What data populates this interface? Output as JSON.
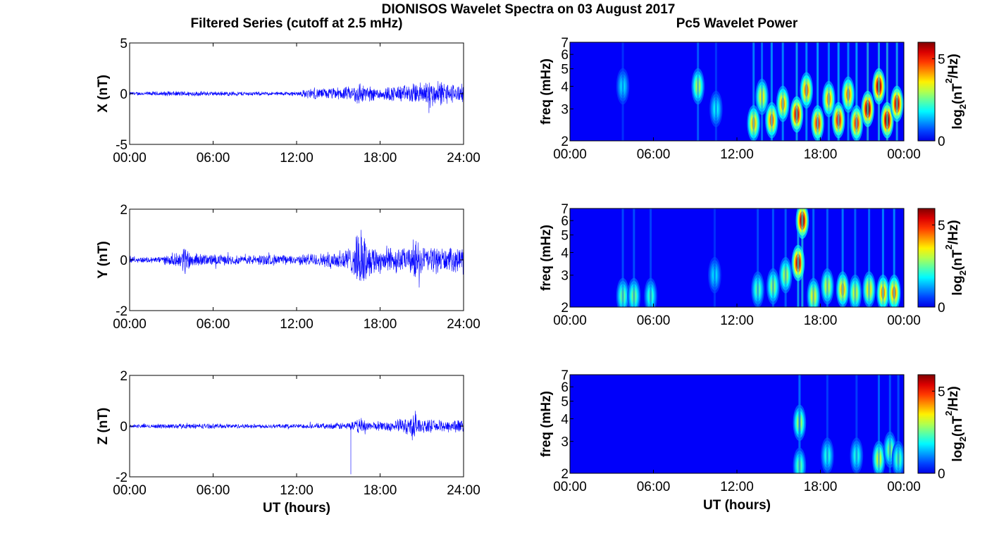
{
  "figure": {
    "title": "DIONISOS Wavelet Spectra on 03 August 2017",
    "left_title": "Filtered Series (cutoff at 2.5 mHz)",
    "right_title": "Pc5 Wavelet Power",
    "xlabel": "UT (hours)"
  },
  "colors": {
    "trace": "#0000ff",
    "axis": "#000000",
    "colormap": "jet",
    "colormap_stops": [
      "#00008f",
      "#0000ff",
      "#00ffff",
      "#ffff00",
      "#ff0000",
      "#800000"
    ]
  },
  "chart_data": [
    {
      "type": "line",
      "panel": "X",
      "ylabel": "X (nT)",
      "x_range_hours": [
        0,
        24
      ],
      "xticks": [
        "00:00",
        "06:00",
        "12:00",
        "18:00",
        "24:00"
      ],
      "ylim": [
        -5,
        5
      ],
      "yticks": [
        "5",
        "0",
        "-5"
      ],
      "envelope_hours": [
        0,
        2,
        4,
        6,
        8,
        10,
        12,
        13,
        14,
        15,
        16,
        16.5,
        17,
        17.5,
        18,
        19,
        20,
        21,
        21.5,
        22,
        22.5,
        23,
        24
      ],
      "envelope_nT": [
        0.2,
        0.25,
        0.3,
        0.25,
        0.25,
        0.2,
        0.25,
        0.6,
        0.6,
        0.7,
        0.8,
        1.5,
        0.9,
        0.8,
        0.7,
        0.9,
        1.0,
        1.3,
        1.8,
        1.2,
        1.4,
        1.1,
        1.0
      ]
    },
    {
      "type": "line",
      "panel": "Y",
      "ylabel": "Y (nT)",
      "x_range_hours": [
        0,
        24
      ],
      "xticks": [
        "00:00",
        "06:00",
        "12:00",
        "18:00",
        "24:00"
      ],
      "ylim": [
        -2,
        2
      ],
      "yticks": [
        "2",
        "0",
        "-2"
      ],
      "envelope_hours": [
        0,
        2,
        3.5,
        4,
        4.5,
        6,
        8,
        10,
        12,
        13,
        14,
        15,
        16,
        16.5,
        16.8,
        17.2,
        18,
        19,
        20,
        20.5,
        21,
        22,
        23,
        24
      ],
      "envelope_nT": [
        0.12,
        0.15,
        0.3,
        0.7,
        0.3,
        0.25,
        0.2,
        0.25,
        0.2,
        0.3,
        0.3,
        0.5,
        0.6,
        1.3,
        1.4,
        0.7,
        0.6,
        0.6,
        0.5,
        1.0,
        0.6,
        0.6,
        0.5,
        0.6
      ]
    },
    {
      "type": "line",
      "panel": "Z",
      "ylabel": "Z (nT)",
      "x_range_hours": [
        0,
        24
      ],
      "xticks": [
        "00:00",
        "06:00",
        "12:00",
        "18:00",
        "24:00"
      ],
      "ylim": [
        -2,
        2
      ],
      "yticks": [
        "2",
        "0",
        "-2"
      ],
      "envelope_hours": [
        0,
        4,
        8,
        12,
        14,
        15,
        16,
        16.8,
        17.2,
        18,
        19,
        20,
        20.5,
        21,
        22,
        23,
        24
      ],
      "envelope_nT": [
        0.08,
        0.12,
        0.1,
        0.1,
        0.12,
        0.15,
        0.2,
        0.4,
        0.2,
        0.2,
        0.25,
        0.4,
        0.7,
        0.3,
        0.25,
        0.3,
        0.3
      ],
      "spikes": [
        {
          "hour": 15.9,
          "value": -1.9
        }
      ]
    },
    {
      "type": "heatmap",
      "panel": "X",
      "ylabel": "freq (mHz)",
      "x_range_hours": [
        0,
        24
      ],
      "xticks": [
        "00:00",
        "06:00",
        "12:00",
        "18:00",
        "00:00"
      ],
      "ylim_mHz": [
        2,
        7
      ],
      "yscale": "log",
      "yticks": [
        "7",
        "6",
        "5",
        "4",
        "3",
        "2"
      ],
      "colorbar": {
        "label": "log2(nT²/Hz)",
        "ticks": [
          "5",
          "0"
        ],
        "range": [
          0,
          6
        ]
      },
      "blobs": [
        {
          "t": 3.8,
          "f": 4.0,
          "p": 1.6
        },
        {
          "t": 9.2,
          "f": 4.0,
          "p": 3.0
        },
        {
          "t": 10.5,
          "f": 3.0,
          "p": 1.8
        },
        {
          "t": 13.2,
          "f": 2.5,
          "p": 4.0
        },
        {
          "t": 13.8,
          "f": 3.5,
          "p": 3.5
        },
        {
          "t": 14.5,
          "f": 2.6,
          "p": 4.5
        },
        {
          "t": 15.3,
          "f": 3.2,
          "p": 4.2
        },
        {
          "t": 16.3,
          "f": 2.8,
          "p": 5.5
        },
        {
          "t": 17.0,
          "f": 3.8,
          "p": 4.5
        },
        {
          "t": 17.8,
          "f": 2.5,
          "p": 5.0
        },
        {
          "t": 18.6,
          "f": 3.4,
          "p": 4.2
        },
        {
          "t": 19.3,
          "f": 2.6,
          "p": 5.2
        },
        {
          "t": 20.0,
          "f": 3.6,
          "p": 4.4
        },
        {
          "t": 20.6,
          "f": 2.5,
          "p": 5.0
        },
        {
          "t": 21.4,
          "f": 3.0,
          "p": 6.0
        },
        {
          "t": 22.2,
          "f": 4.0,
          "p": 5.8
        },
        {
          "t": 22.8,
          "f": 2.6,
          "p": 6.0
        },
        {
          "t": 23.5,
          "f": 3.2,
          "p": 5.6
        }
      ]
    },
    {
      "type": "heatmap",
      "panel": "Y",
      "ylabel": "freq (mHz)",
      "x_range_hours": [
        0,
        24
      ],
      "xticks": [
        "00:00",
        "06:00",
        "12:00",
        "18:00",
        "00:00"
      ],
      "ylim_mHz": [
        2,
        7
      ],
      "yscale": "log",
      "yticks": [
        "7",
        "6",
        "5",
        "4",
        "3",
        "2"
      ],
      "colorbar": {
        "label": "log2(nT²/Hz)",
        "ticks": [
          "5",
          "0"
        ],
        "range": [
          0,
          6
        ]
      },
      "blobs": [
        {
          "t": 3.8,
          "f": 2.3,
          "p": 2.5
        },
        {
          "t": 4.6,
          "f": 2.3,
          "p": 2.6
        },
        {
          "t": 5.8,
          "f": 2.3,
          "p": 2.2
        },
        {
          "t": 10.4,
          "f": 3.0,
          "p": 1.6
        },
        {
          "t": 13.5,
          "f": 2.5,
          "p": 2.4
        },
        {
          "t": 14.6,
          "f": 2.6,
          "p": 2.8
        },
        {
          "t": 15.5,
          "f": 3.0,
          "p": 3.0
        },
        {
          "t": 16.4,
          "f": 3.5,
          "p": 5.6
        },
        {
          "t": 16.7,
          "f": 6.0,
          "p": 5.8
        },
        {
          "t": 17.5,
          "f": 2.3,
          "p": 3.4
        },
        {
          "t": 18.5,
          "f": 2.6,
          "p": 3.2
        },
        {
          "t": 19.6,
          "f": 2.5,
          "p": 4.0
        },
        {
          "t": 20.5,
          "f": 2.4,
          "p": 3.2
        },
        {
          "t": 21.5,
          "f": 2.5,
          "p": 3.6
        },
        {
          "t": 22.5,
          "f": 2.4,
          "p": 4.2
        },
        {
          "t": 23.3,
          "f": 2.4,
          "p": 4.4
        }
      ]
    },
    {
      "type": "heatmap",
      "panel": "Z",
      "ylabel": "freq (mHz)",
      "x_range_hours": [
        0,
        24
      ],
      "xticks": [
        "00:00",
        "06:00",
        "12:00",
        "18:00",
        "00:00"
      ],
      "ylim_mHz": [
        2,
        7
      ],
      "yscale": "log",
      "yticks": [
        "7",
        "6",
        "5",
        "4",
        "3",
        "2"
      ],
      "colorbar": {
        "label": "log2(nT²/Hz)",
        "ticks": [
          "5",
          "0"
        ],
        "range": [
          0,
          6
        ]
      },
      "blobs": [
        {
          "t": 16.5,
          "f": 3.8,
          "p": 3.0
        },
        {
          "t": 16.5,
          "f": 2.2,
          "p": 2.4
        },
        {
          "t": 18.5,
          "f": 2.5,
          "p": 2.0
        },
        {
          "t": 20.6,
          "f": 2.5,
          "p": 2.0
        },
        {
          "t": 22.2,
          "f": 2.4,
          "p": 3.2
        },
        {
          "t": 23.0,
          "f": 2.7,
          "p": 2.6
        },
        {
          "t": 23.6,
          "f": 2.4,
          "p": 2.4
        }
      ]
    }
  ]
}
